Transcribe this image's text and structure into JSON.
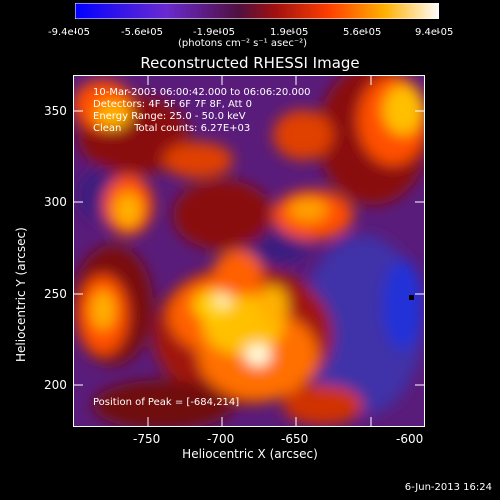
{
  "colorbar": {
    "ticks": [
      "-9.4e-05",
      "-5.6e-05",
      "-1.9e-05",
      "1.9e-05",
      "5.6e-05",
      "9.4e-05"
    ],
    "units": "(photons cm⁻² s⁻¹ asec⁻²)",
    "colors": [
      "#1a1aff",
      "#4a2ca0",
      "#8a2020",
      "#ff6a00",
      "#ffdd20",
      "#ffffff"
    ]
  },
  "title": "Reconstructed RHESSI Image",
  "info": {
    "line1": "10-Mar-2003 06:00:42.000 to 06:06:20.000",
    "line2": "Detectors: 4F 5F 6F 7F 8F, Att 0",
    "line3": "Energy Range: 25.0 - 50.0 keV",
    "line4": "Clean    Total counts: 6.27E+03"
  },
  "peak_text": "Position of Peak = [-684,214]",
  "axes": {
    "xlabel": "Heliocentric X (arcsec)",
    "ylabel": "Heliocentric Y (arcsec)",
    "xticks": [
      "-750",
      "-700",
      "-650",
      "-600"
    ],
    "yticks": [
      "350",
      "300",
      "250",
      "200"
    ]
  },
  "footer": "6-Jun-2013 16:24"
}
